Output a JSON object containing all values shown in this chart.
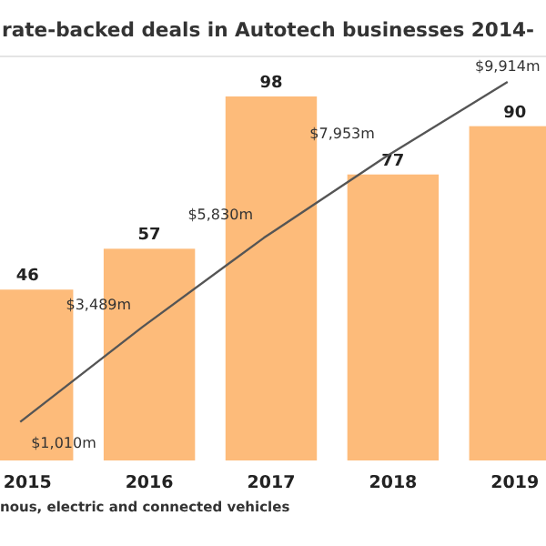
{
  "chart_data": {
    "type": "bar",
    "title": "rate-backed deals in Autotech businesses 2014-",
    "categories": [
      "2015",
      "2016",
      "2017",
      "2018",
      "2019"
    ],
    "series": [
      {
        "color": "#fdbb7a",
        "values": [
          46,
          57,
          98,
          77,
          90
        ]
      },
      {
        "type": "line",
        "axis": "y2",
        "color": "#555555",
        "values": [
          1010,
          3489,
          5830,
          7953,
          9914
        ],
        "value_labels": [
          "$1,010m",
          "$3,489m",
          "$5,830m",
          "$7,953m",
          "$9,914m"
        ]
      }
    ],
    "tick_labels": "x",
    "data_labels": true,
    "marker": "none",
    "line_style": "solid",
    "annotations": [
      "nous, electric and connected vehicles"
    ]
  }
}
